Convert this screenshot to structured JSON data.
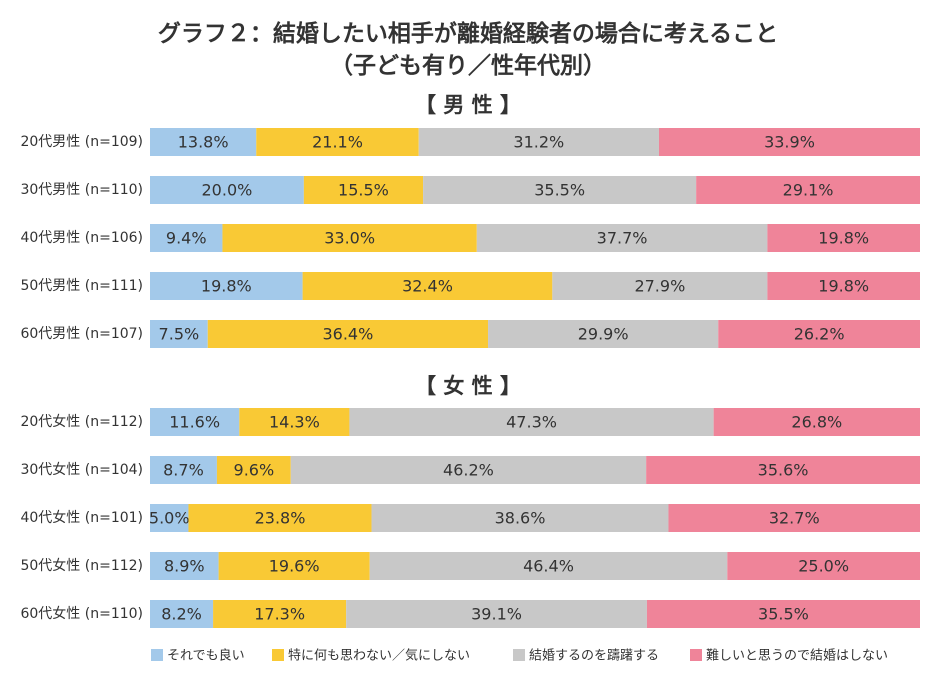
{
  "title_line1": "グラフ２：結婚したい相手が離婚経験者の場合に考えること",
  "title_line2": "（子ども有り／性年代別）",
  "chart_data": {
    "type": "bar",
    "orientation": "horizontal",
    "stacked": "100%",
    "legend_position": "bottom",
    "grid": false,
    "series": [
      {
        "name": "それでも良い",
        "color": "#a3c9ea"
      },
      {
        "name": "特に何も思わない／気にしない",
        "color": "#f9c935"
      },
      {
        "name": "結婚するのを躊躇する",
        "color": "#c8c8c8"
      },
      {
        "name": "難しいと思うので結婚はしない",
        "color": "#ef8499"
      }
    ],
    "groups": [
      {
        "heading": "【 男 性 】",
        "rows": [
          {
            "label": "20代男性 (n=109)",
            "values": [
              13.8,
              21.1,
              31.2,
              33.9
            ]
          },
          {
            "label": "30代男性 (n=110)",
            "values": [
              20.0,
              15.5,
              35.5,
              29.1
            ]
          },
          {
            "label": "40代男性 (n=106)",
            "values": [
              9.4,
              33.0,
              37.7,
              19.8
            ]
          },
          {
            "label": "50代男性 (n=111)",
            "values": [
              19.8,
              32.4,
              27.9,
              19.8
            ]
          },
          {
            "label": "60代男性 (n=107)",
            "values": [
              7.5,
              36.4,
              29.9,
              26.2
            ]
          }
        ]
      },
      {
        "heading": "【 女 性 】",
        "rows": [
          {
            "label": "20代女性 (n=112)",
            "values": [
              11.6,
              14.3,
              47.3,
              26.8
            ]
          },
          {
            "label": "30代女性 (n=104)",
            "values": [
              8.7,
              9.6,
              46.2,
              35.6
            ]
          },
          {
            "label": "40代女性 (n=101)",
            "values": [
              5.0,
              23.8,
              38.6,
              32.7
            ]
          },
          {
            "label": "50代女性 (n=112)",
            "values": [
              8.9,
              19.6,
              46.4,
              25.0
            ]
          },
          {
            "label": "60代女性 (n=110)",
            "values": [
              8.2,
              17.3,
              39.1,
              35.5
            ]
          }
        ]
      }
    ]
  }
}
